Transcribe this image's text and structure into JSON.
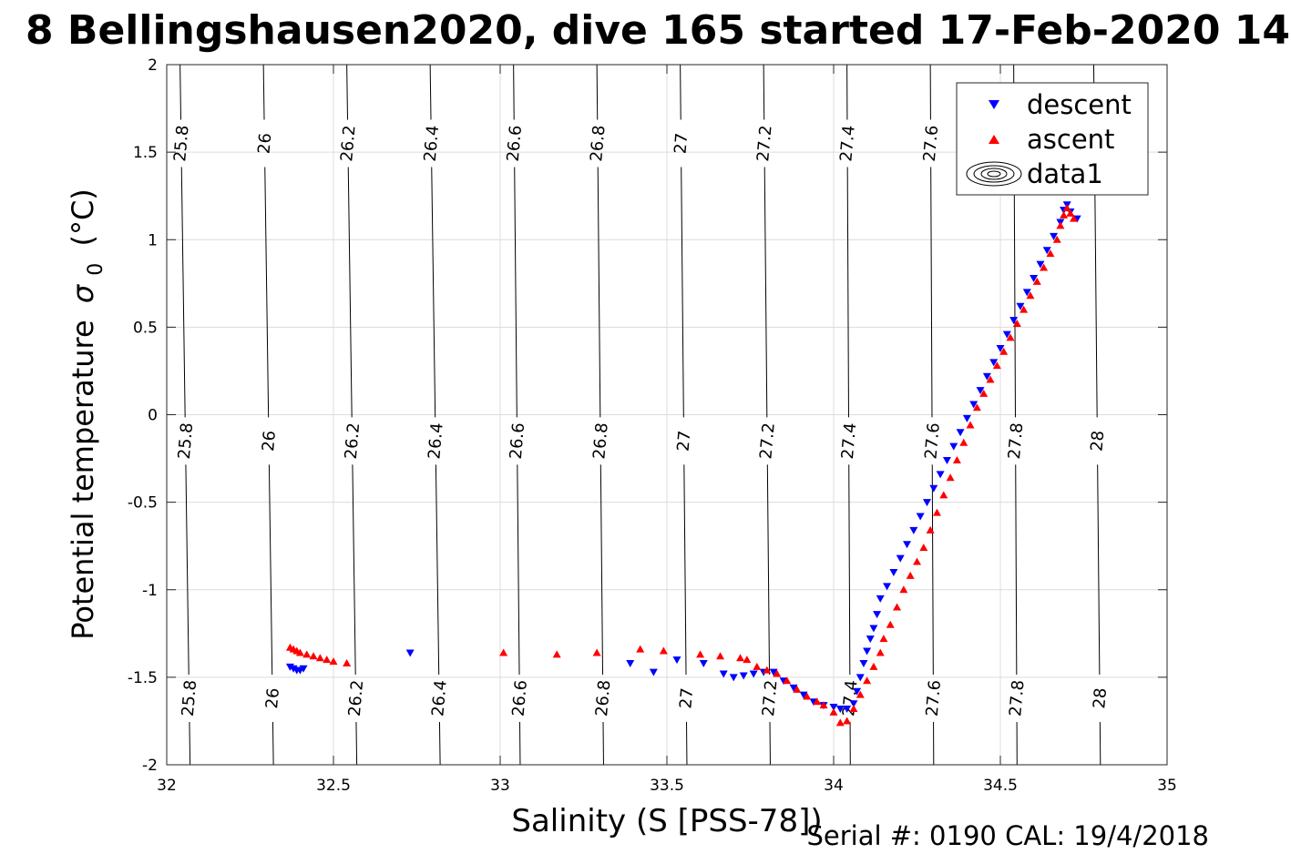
{
  "chart_data": {
    "type": "scatter",
    "title": "8 Bellingshausen2020, dive 165 started 17-Feb-2020 14",
    "xlabel": "Salinity (S [PSS-78])",
    "ylabel": "Potential temperature",
    "ylabel_symbol": "σ",
    "ylabel_subscript": "0",
    "ylabel_unit": "(°C)",
    "footer": "Serial #: 0190  CAL: 19/4/2018",
    "xlim": [
      32,
      35
    ],
    "ylim": [
      -2,
      2
    ],
    "x_ticks": [
      "32",
      "32.5",
      "33",
      "33.5",
      "34",
      "34.5",
      "35"
    ],
    "y_ticks": [
      "-2",
      "-1.5",
      "-1",
      "-0.5",
      "0",
      "0.5",
      "1",
      "1.5",
      "2"
    ],
    "grid": true,
    "legend_position": "top-right",
    "legend": [
      "descent",
      "ascent",
      "data1"
    ],
    "colors": {
      "descent": "#0000ff",
      "ascent": "#ff0000",
      "contour": "#000000",
      "grid": "#dcdcdc"
    },
    "contours": [
      {
        "level": "25.8",
        "x_top": 32.04,
        "x_bottom": 32.07
      },
      {
        "level": "26",
        "x_top": 32.29,
        "x_bottom": 32.32
      },
      {
        "level": "26.2",
        "x_top": 32.54,
        "x_bottom": 32.57
      },
      {
        "level": "26.4",
        "x_top": 32.79,
        "x_bottom": 32.82
      },
      {
        "level": "26.6",
        "x_top": 33.04,
        "x_bottom": 33.06
      },
      {
        "level": "26.8",
        "x_top": 33.29,
        "x_bottom": 33.31
      },
      {
        "level": "27",
        "x_top": 33.54,
        "x_bottom": 33.56
      },
      {
        "level": "27.2",
        "x_top": 33.79,
        "x_bottom": 33.81
      },
      {
        "level": "27.4",
        "x_top": 34.04,
        "x_bottom": 34.05
      },
      {
        "level": "27.6",
        "x_top": 34.29,
        "x_bottom": 34.3
      },
      {
        "level": "27.8",
        "x_top": 34.54,
        "x_bottom": 34.55
      },
      {
        "level": "28",
        "x_top": 34.78,
        "x_bottom": 34.8
      }
    ],
    "series": [
      {
        "name": "descent",
        "marker": "triangle-down",
        "points": [
          [
            32.37,
            -1.44
          ],
          [
            32.38,
            -1.45
          ],
          [
            32.39,
            -1.46
          ],
          [
            32.4,
            -1.46
          ],
          [
            32.41,
            -1.45
          ],
          [
            32.73,
            -1.36
          ],
          [
            33.39,
            -1.42
          ],
          [
            33.46,
            -1.47
          ],
          [
            33.53,
            -1.4
          ],
          [
            33.61,
            -1.42
          ],
          [
            33.67,
            -1.48
          ],
          [
            33.7,
            -1.5
          ],
          [
            33.73,
            -1.49
          ],
          [
            33.76,
            -1.48
          ],
          [
            33.79,
            -1.47
          ],
          [
            33.82,
            -1.47
          ],
          [
            33.85,
            -1.52
          ],
          [
            33.88,
            -1.56
          ],
          [
            33.91,
            -1.6
          ],
          [
            33.94,
            -1.64
          ],
          [
            33.97,
            -1.66
          ],
          [
            34.0,
            -1.67
          ],
          [
            34.02,
            -1.68
          ],
          [
            34.04,
            -1.68
          ],
          [
            34.06,
            -1.65
          ],
          [
            34.07,
            -1.58
          ],
          [
            34.08,
            -1.5
          ],
          [
            34.09,
            -1.42
          ],
          [
            34.1,
            -1.35
          ],
          [
            34.11,
            -1.28
          ],
          [
            34.12,
            -1.22
          ],
          [
            34.13,
            -1.14
          ],
          [
            34.14,
            -1.05
          ],
          [
            34.16,
            -0.98
          ],
          [
            34.18,
            -0.9
          ],
          [
            34.2,
            -0.82
          ],
          [
            34.22,
            -0.74
          ],
          [
            34.24,
            -0.66
          ],
          [
            34.26,
            -0.58
          ],
          [
            34.28,
            -0.5
          ],
          [
            34.3,
            -0.42
          ],
          [
            34.32,
            -0.34
          ],
          [
            34.34,
            -0.26
          ],
          [
            34.36,
            -0.18
          ],
          [
            34.38,
            -0.1
          ],
          [
            34.4,
            -0.02
          ],
          [
            34.42,
            0.06
          ],
          [
            34.44,
            0.14
          ],
          [
            34.46,
            0.22
          ],
          [
            34.48,
            0.3
          ],
          [
            34.5,
            0.38
          ],
          [
            34.52,
            0.46
          ],
          [
            34.54,
            0.54
          ],
          [
            34.56,
            0.62
          ],
          [
            34.58,
            0.7
          ],
          [
            34.6,
            0.78
          ],
          [
            34.62,
            0.86
          ],
          [
            34.64,
            0.94
          ],
          [
            34.66,
            1.02
          ],
          [
            34.68,
            1.1
          ],
          [
            34.69,
            1.17
          ],
          [
            34.7,
            1.2
          ],
          [
            34.71,
            1.16
          ],
          [
            34.73,
            1.12
          ]
        ]
      },
      {
        "name": "ascent",
        "marker": "triangle-up",
        "points": [
          [
            32.37,
            -1.33
          ],
          [
            32.38,
            -1.34
          ],
          [
            32.39,
            -1.35
          ],
          [
            32.4,
            -1.36
          ],
          [
            32.42,
            -1.37
          ],
          [
            32.44,
            -1.38
          ],
          [
            32.46,
            -1.39
          ],
          [
            32.48,
            -1.4
          ],
          [
            32.5,
            -1.41
          ],
          [
            32.54,
            -1.42
          ],
          [
            33.01,
            -1.36
          ],
          [
            33.17,
            -1.37
          ],
          [
            33.29,
            -1.36
          ],
          [
            33.42,
            -1.34
          ],
          [
            33.49,
            -1.35
          ],
          [
            33.6,
            -1.37
          ],
          [
            33.66,
            -1.38
          ],
          [
            33.72,
            -1.39
          ],
          [
            33.74,
            -1.4
          ],
          [
            33.77,
            -1.44
          ],
          [
            33.8,
            -1.46
          ],
          [
            33.83,
            -1.48
          ],
          [
            33.86,
            -1.52
          ],
          [
            33.89,
            -1.57
          ],
          [
            33.92,
            -1.61
          ],
          [
            33.95,
            -1.64
          ],
          [
            33.97,
            -1.66
          ],
          [
            34.0,
            -1.7
          ],
          [
            34.02,
            -1.76
          ],
          [
            34.04,
            -1.75
          ],
          [
            34.06,
            -1.68
          ],
          [
            34.08,
            -1.6
          ],
          [
            34.1,
            -1.52
          ],
          [
            34.12,
            -1.44
          ],
          [
            34.14,
            -1.36
          ],
          [
            34.15,
            -1.28
          ],
          [
            34.17,
            -1.2
          ],
          [
            34.19,
            -1.1
          ],
          [
            34.21,
            -1.0
          ],
          [
            34.23,
            -0.92
          ],
          [
            34.25,
            -0.84
          ],
          [
            34.27,
            -0.76
          ],
          [
            34.29,
            -0.66
          ],
          [
            34.31,
            -0.56
          ],
          [
            34.33,
            -0.46
          ],
          [
            34.35,
            -0.36
          ],
          [
            34.37,
            -0.26
          ],
          [
            34.39,
            -0.16
          ],
          [
            34.41,
            -0.06
          ],
          [
            34.43,
            0.04
          ],
          [
            34.45,
            0.12
          ],
          [
            34.47,
            0.2
          ],
          [
            34.49,
            0.28
          ],
          [
            34.51,
            0.36
          ],
          [
            34.53,
            0.44
          ],
          [
            34.55,
            0.52
          ],
          [
            34.57,
            0.6
          ],
          [
            34.59,
            0.68
          ],
          [
            34.61,
            0.76
          ],
          [
            34.63,
            0.84
          ],
          [
            34.65,
            0.92
          ],
          [
            34.67,
            1.0
          ],
          [
            34.68,
            1.08
          ],
          [
            34.69,
            1.14
          ],
          [
            34.7,
            1.18
          ],
          [
            34.71,
            1.15
          ],
          [
            34.72,
            1.12
          ]
        ]
      }
    ]
  }
}
